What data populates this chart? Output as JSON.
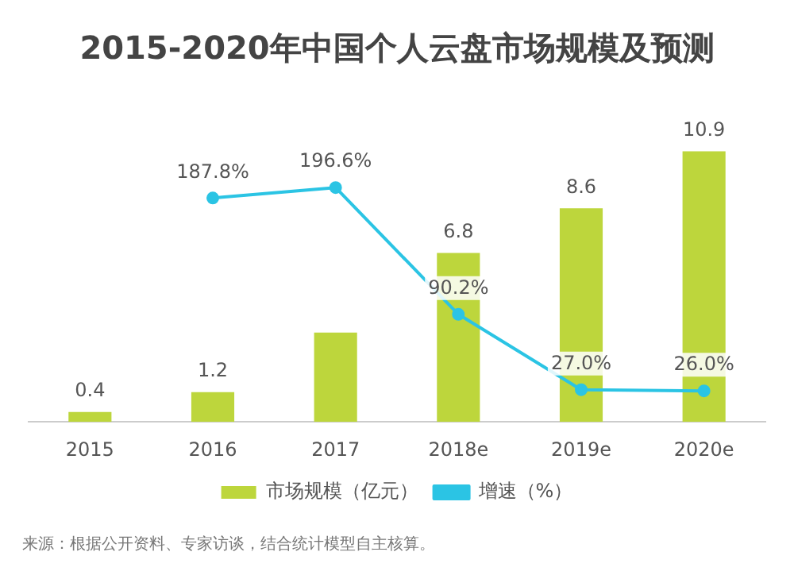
{
  "chart_data": {
    "type": "bar",
    "title": "2015-2020年中国个人云盘市场规模及预测",
    "categories": [
      "2015",
      "2016",
      "2017",
      "2018e",
      "2019e",
      "2020e"
    ],
    "series": [
      {
        "name": "市场规模（亿元）",
        "color": "#bdd63c",
        "values": [
          0.4,
          1.2,
          3.6,
          6.8,
          8.6,
          10.9
        ],
        "value_labels": [
          "0.4",
          "1.2",
          null,
          "6.8",
          "8.6",
          "10.9"
        ]
      },
      {
        "name": "增速（%）",
        "type": "line",
        "axis": "y2",
        "color": "#2bc4e4",
        "values": [
          null,
          187.8,
          196.6,
          90.2,
          27.0,
          26.0
        ],
        "value_labels": [
          null,
          "187.8%",
          "196.6%",
          "90.2%",
          "27.0%",
          "26.0%"
        ]
      }
    ],
    "marker": "circle",
    "legend": "bottom",
    "grid": false,
    "tick_labels": "x",
    "annotations": [
      "来源：根据公开资料、专家访谈，结合统计模型自主核算。"
    ]
  }
}
